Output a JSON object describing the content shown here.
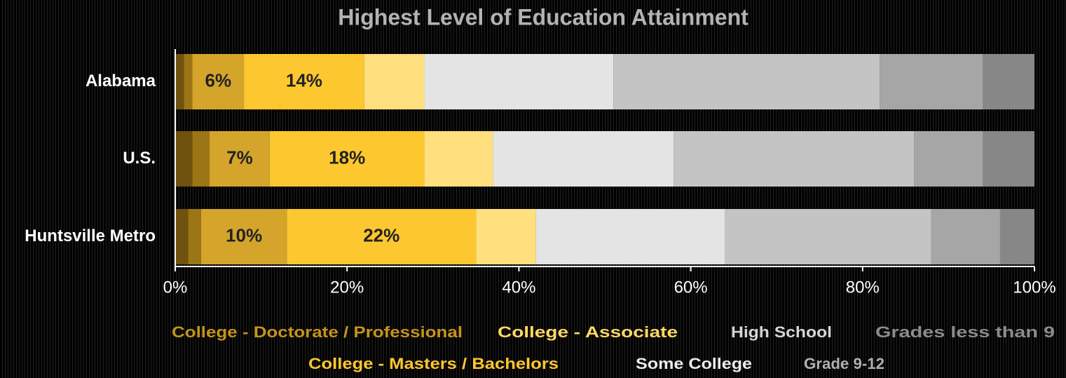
{
  "chart_data": {
    "type": "stacked-barh",
    "title": "Highest Level of Education Attainment",
    "categories": [
      "Alabama",
      "U.S.",
      "Huntsville Metro"
    ],
    "series": [
      {
        "color": "#6e520e",
        "values": [
          1,
          2,
          1.5
        ]
      },
      {
        "color": "#9c7616",
        "values": [
          1,
          2,
          1.5
        ]
      },
      {
        "color": "#d4a52a",
        "values": [
          6,
          7,
          10
        ],
        "value_labels": [
          "6%",
          "7%",
          "10%"
        ]
      },
      {
        "color": "#fdc82f",
        "values": [
          14,
          18,
          22
        ],
        "value_labels": [
          "14%",
          "18%",
          "22%"
        ]
      },
      {
        "color": "#ffdf7e",
        "values": [
          7,
          8,
          7
        ]
      },
      {
        "color": "#e4e4e4",
        "values": [
          22,
          21,
          22
        ]
      },
      {
        "color": "#c4c4c4",
        "values": [
          31,
          28,
          24
        ]
      },
      {
        "color": "#a6a6a6",
        "values": [
          12,
          8,
          8
        ]
      },
      {
        "color": "#878787",
        "values": [
          6,
          6,
          4
        ]
      }
    ],
    "legend": [
      {
        "name": "College - Doctorate / Professional",
        "color": "#c4941c"
      },
      {
        "name": "College - Associate",
        "color": "#ffd966"
      },
      {
        "name": "High School",
        "color": "#d6d6d6"
      },
      {
        "name": "Grades less than 9",
        "color": "#8c8c8c"
      },
      {
        "name": "College - Masters / Bachelors",
        "color": "#fdc82f"
      },
      {
        "name": "Some College",
        "color": "#ececec"
      },
      {
        "name": "Grade 9-12",
        "color": "#b0b0b0"
      }
    ],
    "xlim": [
      0,
      100
    ],
    "xticks": [
      {
        "value": 0,
        "label": "0%"
      },
      {
        "value": 20,
        "label": "20%"
      },
      {
        "value": 40,
        "label": "40%"
      },
      {
        "value": 60,
        "label": "60%"
      },
      {
        "value": 80,
        "label": "80%"
      },
      {
        "value": 100,
        "label": "100%"
      }
    ]
  }
}
